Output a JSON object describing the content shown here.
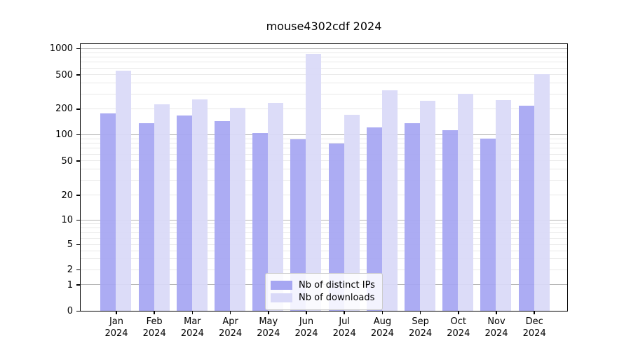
{
  "chart_data": {
    "type": "bar",
    "title": "mouse4302cdf 2024",
    "categories": [
      "Jan 2024",
      "Feb 2024",
      "Mar 2024",
      "Apr 2024",
      "May 2024",
      "Jun 2024",
      "Jul 2024",
      "Aug 2024",
      "Sep 2024",
      "Oct 2024",
      "Nov 2024",
      "Dec 2024"
    ],
    "series": [
      {
        "name": "Nb of distinct IPs",
        "color": "#a6a6f2",
        "values": [
          177,
          136,
          165,
          142,
          103,
          88,
          78,
          120,
          134,
          112,
          90,
          218
        ]
      },
      {
        "name": "Nb of downloads",
        "color": "#d9d9f8",
        "values": [
          555,
          226,
          254,
          204,
          235,
          865,
          168,
          325,
          246,
          300,
          250,
          500
        ]
      }
    ],
    "xlabel": "",
    "ylabel": "",
    "y_scale": "symlog",
    "y_ticks": [
      0,
      1,
      2,
      5,
      10,
      20,
      50,
      100,
      200,
      500,
      1000
    ],
    "ylim": [
      0,
      1000
    ],
    "grid": "horizontal",
    "legend_position": "bottom-center",
    "colors": {
      "axis": "#000000",
      "major_grid": "#b3b3b3",
      "minor_grid": "#e9e9e9",
      "background": "#ffffff"
    }
  }
}
